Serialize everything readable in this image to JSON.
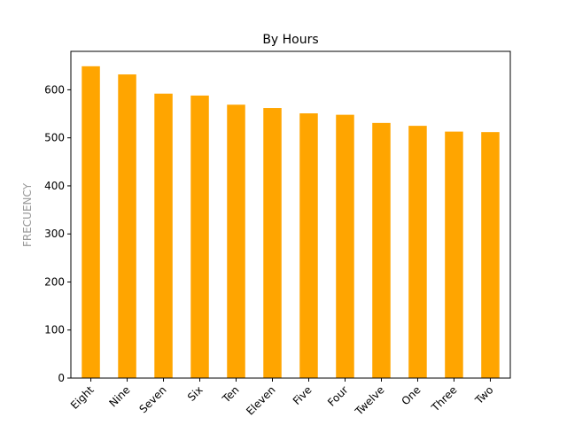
{
  "chart_data": {
    "type": "bar",
    "title": "By Hours",
    "xlabel": "",
    "ylabel": "FRECUENCY",
    "categories": [
      "Eight",
      "Nine",
      "Seven",
      "Six",
      "Ten",
      "Eleven",
      "Five",
      "Four",
      "Twelve",
      "One",
      "Three",
      "Two"
    ],
    "values": [
      649,
      632,
      592,
      588,
      569,
      562,
      551,
      548,
      531,
      525,
      513,
      512
    ],
    "ylim": [
      0,
      680
    ],
    "yticks": [
      0,
      100,
      200,
      300,
      400,
      500,
      600
    ],
    "grid": false,
    "bar_color": "#FFA500"
  }
}
